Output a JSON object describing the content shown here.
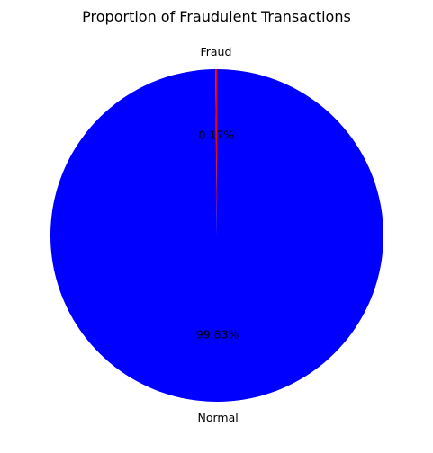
{
  "chart_data": {
    "type": "pie",
    "title": "Proportion of Fraudulent Transactions",
    "slices": [
      {
        "label": "Fraud",
        "value": 0.17,
        "pct_label": "0.17%",
        "color": "#ff0000"
      },
      {
        "label": "Normal",
        "value": 99.83,
        "pct_label": "99.83%",
        "color": "#0000ff"
      }
    ],
    "start_angle_deg": 90,
    "direction": "counterclockwise",
    "legend": "none"
  }
}
